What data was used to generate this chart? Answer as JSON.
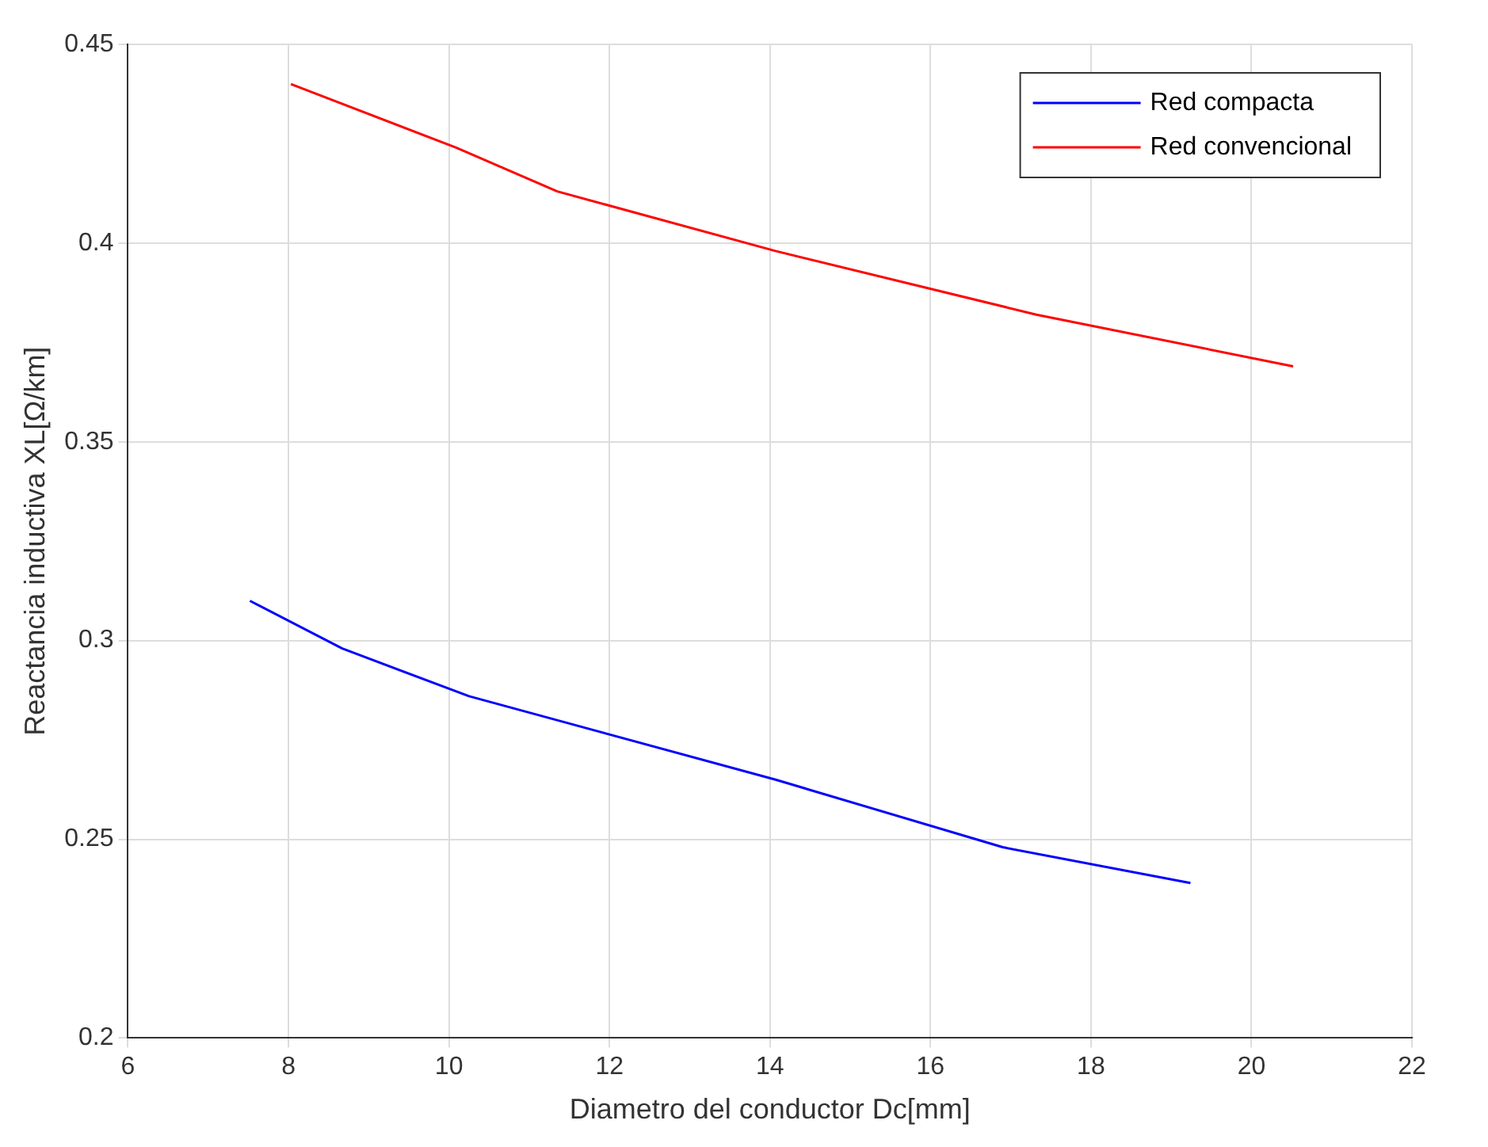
{
  "chart_data": {
    "type": "line",
    "xlabel": "Diametro del conductor Dc[mm]",
    "ylabel": "Reactancia inductiva XL[Ω/km]",
    "series": [
      {
        "name": "Red compacta",
        "color": "#0000ff",
        "x": [
          7.52,
          8.67,
          10.25,
          14.07,
          16.9,
          19.24
        ],
        "values": [
          0.31,
          0.298,
          0.286,
          0.265,
          0.248,
          0.239
        ]
      },
      {
        "name": "Red convencional",
        "color": "#ff0000",
        "x": [
          8.03,
          10.09,
          11.35,
          14.07,
          17.32,
          20.52
        ],
        "values": [
          0.44,
          0.424,
          0.413,
          0.398,
          0.382,
          0.369
        ]
      }
    ],
    "xlim": [
      6,
      22
    ],
    "xticks": [
      6,
      8,
      10,
      12,
      14,
      16,
      18,
      20,
      22
    ],
    "ylim": [
      0.2,
      0.45
    ],
    "yticks": [
      0.2,
      0.25,
      0.3,
      0.35,
      0.4,
      0.45
    ],
    "grid": true,
    "legend": "top right",
    "marker": "none",
    "line_style": "solid"
  }
}
